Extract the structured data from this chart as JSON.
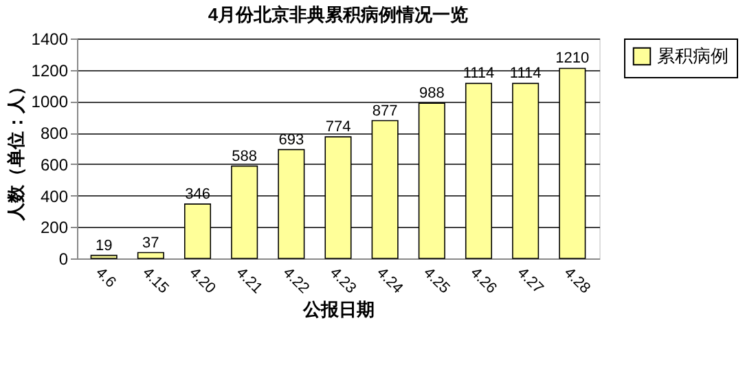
{
  "chart_data": {
    "type": "bar",
    "title": "4月份北京非典累积病例情况一览",
    "xlabel": "公报日期",
    "ylabel": "人数（单位：人）",
    "categories": [
      "4.6",
      "4.15",
      "4.20",
      "4.21",
      "4.22",
      "4.23",
      "4.24",
      "4.25",
      "4.26",
      "4.27",
      "4.28"
    ],
    "series": [
      {
        "name": "累积病例",
        "color": "#ffff99",
        "values": [
          19,
          37,
          346,
          588,
          693,
          774,
          877,
          988,
          1114,
          1114,
          1210
        ]
      }
    ],
    "ylim": [
      0,
      1400
    ],
    "yticks": [
      0,
      200,
      400,
      600,
      800,
      1000,
      1200,
      1400
    ],
    "grid": "y",
    "legend": "right",
    "data_labels": true
  }
}
